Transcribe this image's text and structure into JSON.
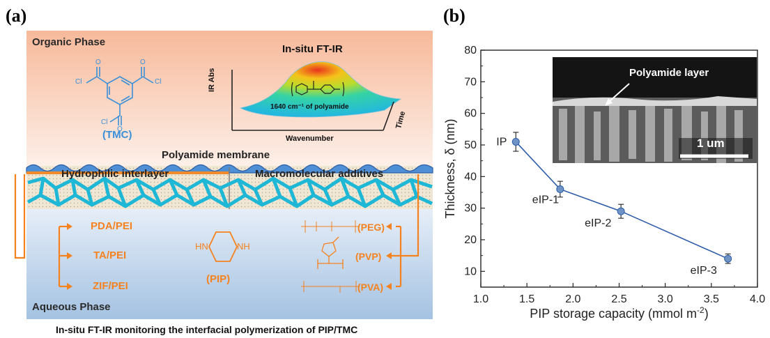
{
  "panel_a": {
    "label": "(a)",
    "organic_phase": "Organic Phase",
    "tmc_label": "(TMC)",
    "tmc_atoms": {
      "cl": "Cl",
      "o": "O"
    },
    "ftir": {
      "title": "In-situ FT-IR",
      "ylabel": "IR Abs",
      "xlabel": "Wavenumber",
      "zlabel": "Time",
      "peak_label": "1640 cm⁻¹ of polyamide"
    },
    "membrane_label": "Polyamide membrane",
    "hydrophilic_interlayer": "Hydrophilic interlayer",
    "macromolecular_additives": "Macromolecular additives",
    "interlayers": [
      "PDA/PEI",
      "TA/PEI",
      "ZIF/PEI"
    ],
    "additives": [
      "(PEG)",
      "(PVP)",
      "(PVA)"
    ],
    "pip_label": "(PIP)",
    "pip_atoms": {
      "hn": "HN",
      "nh": "NH"
    },
    "aqueous_phase": "Aqueous Phase",
    "caption": "In-situ FT-IR monitoring the interfacial polymerization of PIP/TMC",
    "colors": {
      "accent": "#f5821f",
      "blue": "#3a8fd9",
      "network": "#1fb7d6",
      "organic_top": "#f8c9ad",
      "aqueous_bottom": "#9fbfe0"
    }
  },
  "panel_b": {
    "label": "(b)",
    "inset": {
      "annotation": "Polyamide layer",
      "scale_bar": "1 um"
    }
  },
  "chart_data": {
    "type": "scatter",
    "xlabel": "PIP storage capacity (mmol m",
    "xlabel_sup": "-2",
    "xlabel_end": ")",
    "ylabel": "Thickness, δ (nm)",
    "xlim": [
      1.0,
      4.0
    ],
    "ylim": [
      5,
      80
    ],
    "xticks": [
      "1.0",
      "1.5",
      "2.0",
      "2.5",
      "3.0",
      "3.5",
      "4.0"
    ],
    "yticks": [
      "10",
      "20",
      "30",
      "40",
      "50",
      "60",
      "70",
      "80"
    ],
    "series": [
      {
        "points": [
          {
            "label": "IP",
            "x": 1.38,
            "y": 51,
            "err": 3
          },
          {
            "label": "eIP-1",
            "x": 1.86,
            "y": 36,
            "err": 2.5
          },
          {
            "label": "eIP-2",
            "x": 2.52,
            "y": 29,
            "err": 2.2
          },
          {
            "label": "eIP-3",
            "x": 3.68,
            "y": 14,
            "err": 1.5
          }
        ]
      }
    ],
    "marker_color": "#6f93c5",
    "line_color": "#2e5da8"
  }
}
